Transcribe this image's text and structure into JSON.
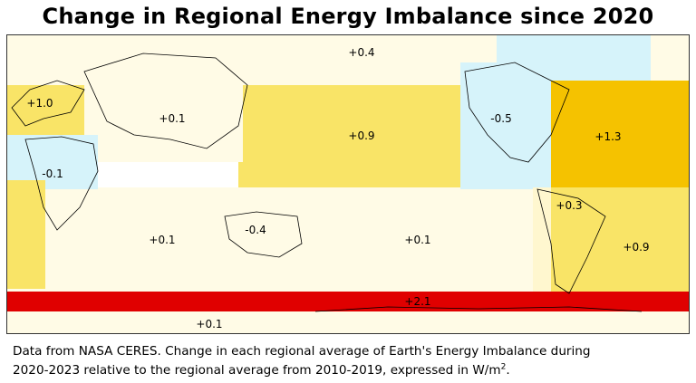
{
  "title": "Change in Regional Energy Imbalance since 2020",
  "colors": {
    "ocean_low": "#fffbe6",
    "moderate_warm": "#f9e467",
    "warm": "#f5c200",
    "strong": "#e00000",
    "cool": "#d6f3fa",
    "warm_light": "#fff7cf",
    "coast": "#000000"
  },
  "regions": [
    {
      "name": "arctic",
      "value": "+0.4"
    },
    {
      "name": "europe",
      "value": "+1.0"
    },
    {
      "name": "asia",
      "value": "+0.1"
    },
    {
      "name": "north-pacific",
      "value": "+0.9"
    },
    {
      "name": "north-america",
      "value": "-0.5"
    },
    {
      "name": "north-atlantic",
      "value": "+1.3"
    },
    {
      "name": "africa",
      "value": "-0.1"
    },
    {
      "name": "australia",
      "value": "-0.4"
    },
    {
      "name": "south-america",
      "value": "+0.3"
    },
    {
      "name": "south-atlantic",
      "value": "+0.9"
    },
    {
      "name": "indian-ocean",
      "value": "+0.1"
    },
    {
      "name": "south-pacific",
      "value": "+0.1"
    },
    {
      "name": "southern-ocean",
      "value": "+2.1"
    },
    {
      "name": "antarctica",
      "value": "+0.1"
    }
  ],
  "caption": {
    "line1": "Data from NASA CERES.  Change in each regional average of Earth's Energy Imbalance during",
    "line2": "2020-2023 relative to the regional average from 2010-2019, expressed in W/m",
    "superscript": "2",
    "suffix": "."
  }
}
